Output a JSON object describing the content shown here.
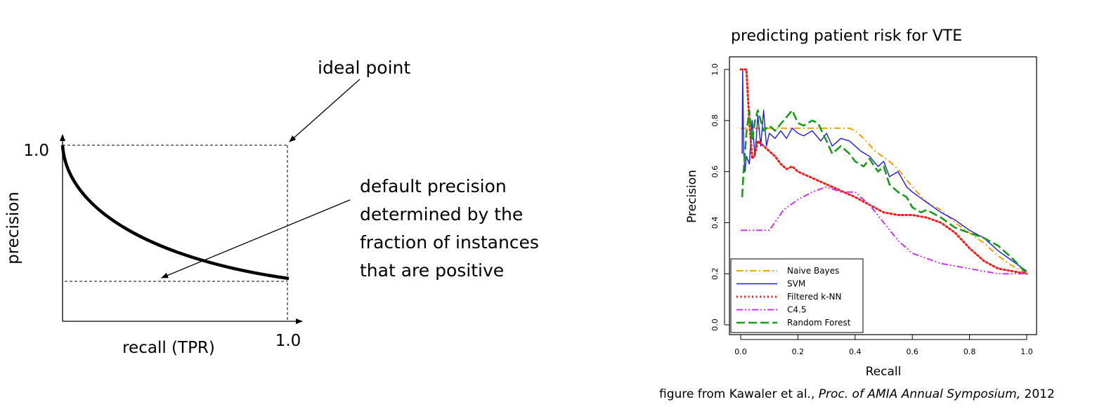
{
  "diagram": {
    "ylabel": "precision",
    "xlabel": "recall (TPR)",
    "y_tick": "1.0",
    "x_tick": "1.0",
    "ideal_label": "ideal point",
    "default_lines": [
      "default precision",
      "determined by the",
      "fraction of instances",
      "that are positive"
    ]
  },
  "chart_data": {
    "type": "line",
    "title": "predicting patient risk for VTE",
    "xlabel": "Recall",
    "ylabel": "Precision",
    "xlim": [
      0,
      1
    ],
    "ylim": [
      0,
      1
    ],
    "x_ticks": [
      "0.0",
      "0.2",
      "0.4",
      "0.6",
      "0.8",
      "1.0"
    ],
    "y_ticks": [
      "0.0",
      "0.2",
      "0.4",
      "0.6",
      "0.8",
      "1.0"
    ],
    "grid": false,
    "legend_position": "bottom-left",
    "series": [
      {
        "name": "Naive Bayes",
        "color": "#f5a000",
        "dash": "dashdot",
        "x": [
          0.0,
          0.05,
          0.15,
          0.3,
          0.38,
          0.4,
          0.43,
          0.47,
          0.52,
          0.55,
          0.6,
          0.65,
          0.7,
          0.75,
          0.8,
          0.85,
          0.9,
          0.95,
          1.0
        ],
        "y": [
          0.77,
          0.77,
          0.77,
          0.77,
          0.77,
          0.76,
          0.73,
          0.68,
          0.64,
          0.61,
          0.54,
          0.48,
          0.45,
          0.4,
          0.36,
          0.32,
          0.27,
          0.23,
          0.2
        ]
      },
      {
        "name": "SVM",
        "color": "#1a1aff",
        "dash": "solid",
        "x": [
          0.005,
          0.007,
          0.01,
          0.015,
          0.02,
          0.03,
          0.04,
          0.05,
          0.06,
          0.07,
          0.08,
          0.09,
          0.1,
          0.12,
          0.14,
          0.16,
          0.18,
          0.2,
          0.22,
          0.25,
          0.28,
          0.3,
          0.32,
          0.35,
          0.38,
          0.4,
          0.42,
          0.45,
          0.48,
          0.5,
          0.52,
          0.55,
          0.58,
          0.6,
          0.65,
          0.7,
          0.75,
          0.8,
          0.85,
          0.9,
          0.95,
          1.0
        ],
        "y": [
          0.67,
          1.0,
          0.68,
          0.6,
          0.66,
          0.63,
          0.8,
          0.66,
          0.82,
          0.7,
          0.84,
          0.7,
          0.75,
          0.73,
          0.76,
          0.73,
          0.77,
          0.75,
          0.74,
          0.76,
          0.72,
          0.75,
          0.7,
          0.73,
          0.72,
          0.7,
          0.68,
          0.66,
          0.62,
          0.64,
          0.58,
          0.6,
          0.54,
          0.52,
          0.48,
          0.44,
          0.41,
          0.37,
          0.34,
          0.29,
          0.25,
          0.21
        ]
      },
      {
        "name": "Filtered k-NN",
        "color": "#ff1a1a",
        "dash": "dotted",
        "x": [
          0.0,
          0.01,
          0.02,
          0.03,
          0.04,
          0.05,
          0.06,
          0.08,
          0.1,
          0.12,
          0.14,
          0.16,
          0.18,
          0.2,
          0.24,
          0.28,
          0.32,
          0.36,
          0.4,
          0.45,
          0.5,
          0.55,
          0.6,
          0.65,
          0.7,
          0.75,
          0.8,
          0.85,
          0.9,
          0.95,
          1.0
        ],
        "y": [
          1.0,
          1.0,
          1.0,
          0.8,
          0.65,
          0.67,
          0.72,
          0.7,
          0.68,
          0.66,
          0.63,
          0.61,
          0.62,
          0.6,
          0.58,
          0.56,
          0.54,
          0.52,
          0.5,
          0.47,
          0.44,
          0.43,
          0.43,
          0.42,
          0.4,
          0.36,
          0.3,
          0.25,
          0.22,
          0.21,
          0.2
        ]
      },
      {
        "name": "C4.5",
        "color": "#cc33ff",
        "dash": "dashdotdot",
        "x": [
          0.0,
          0.05,
          0.1,
          0.15,
          0.2,
          0.25,
          0.3,
          0.35,
          0.4,
          0.45,
          0.5,
          0.55,
          0.6,
          0.65,
          0.7,
          0.75,
          0.8,
          0.85,
          0.9,
          0.95,
          1.0
        ],
        "y": [
          0.37,
          0.37,
          0.37,
          0.45,
          0.49,
          0.52,
          0.54,
          0.52,
          0.52,
          0.47,
          0.4,
          0.33,
          0.28,
          0.26,
          0.24,
          0.23,
          0.22,
          0.21,
          0.2,
          0.2,
          0.2
        ]
      },
      {
        "name": "Random Forest",
        "color": "#149e14",
        "dash": "dashed",
        "x": [
          0.005,
          0.01,
          0.02,
          0.03,
          0.04,
          0.05,
          0.06,
          0.07,
          0.08,
          0.1,
          0.12,
          0.15,
          0.18,
          0.2,
          0.22,
          0.25,
          0.27,
          0.3,
          0.32,
          0.35,
          0.38,
          0.4,
          0.43,
          0.45,
          0.48,
          0.5,
          0.52,
          0.55,
          0.58,
          0.6,
          0.63,
          0.65,
          0.7,
          0.75,
          0.8,
          0.85,
          0.9,
          0.95,
          1.0
        ],
        "y": [
          0.5,
          0.6,
          0.75,
          0.84,
          0.72,
          0.8,
          0.84,
          0.8,
          0.76,
          0.78,
          0.76,
          0.8,
          0.84,
          0.79,
          0.78,
          0.8,
          0.79,
          0.72,
          0.67,
          0.7,
          0.67,
          0.64,
          0.62,
          0.65,
          0.6,
          0.62,
          0.55,
          0.52,
          0.5,
          0.46,
          0.44,
          0.45,
          0.42,
          0.38,
          0.36,
          0.34,
          0.31,
          0.26,
          0.2
        ]
      }
    ]
  },
  "caption": {
    "prefix": "figure from Kawaler et al., ",
    "venue": "Proc. of AMIA Annual Symposium,",
    "year": " 2012"
  }
}
